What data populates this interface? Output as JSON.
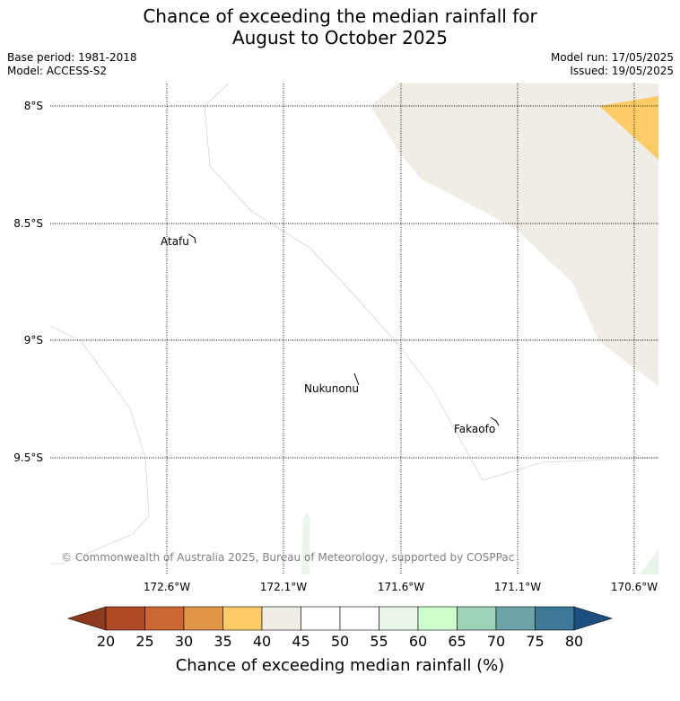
{
  "title": {
    "line1": "Chance of exceeding the median rainfall for",
    "line2": "August to October 2025"
  },
  "meta": {
    "base_period": "Base period: 1981-2018",
    "model": "Model: ACCESS-S2",
    "model_run": "Model run: 17/05/2025",
    "issued": "Issued: 19/05/2025"
  },
  "map": {
    "lat_labels": [
      "8°S",
      "8.5°S",
      "9°S",
      "9.5°S"
    ],
    "lon_labels": [
      "172.6°W",
      "172.1°W",
      "171.6°W",
      "171.1°W",
      "170.6°W"
    ],
    "places": [
      "Atafu",
      "Nukunonu",
      "Fakaofo"
    ],
    "copyright": "© Commonwealth of Australia 2025, Bureau of Meteorology, supported by COSPPac"
  },
  "colorbar": {
    "ticks": [
      "20",
      "25",
      "30",
      "35",
      "40",
      "45",
      "50",
      "55",
      "60",
      "65",
      "70",
      "75",
      "80"
    ],
    "colors": [
      "#8c3a1e",
      "#b04a24",
      "#cc6633",
      "#e09548",
      "#fecc66",
      "#f0ece6",
      "#ffffff",
      "#ffffff",
      "#eaf5ea",
      "#ccffcc",
      "#9dd1b8",
      "#6ba3a8",
      "#3d7896",
      "#1a4f80"
    ],
    "label": "Chance of exceeding median rainfall (%)"
  }
}
